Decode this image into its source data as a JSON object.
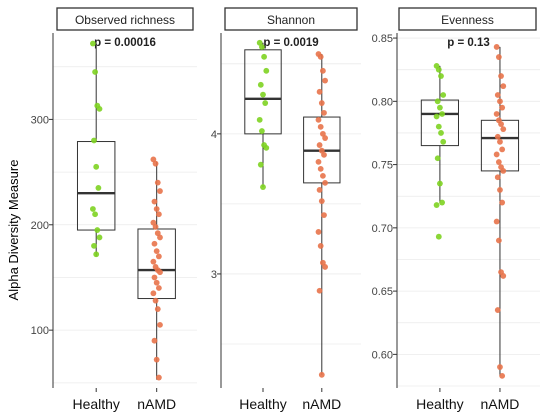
{
  "figure": {
    "ylabel": "Alpha Diversity Measure"
  },
  "colors": {
    "healthy": "#7ed321",
    "namd": "#e8734a",
    "box_stroke": "#333333",
    "grid": "#ebebeb"
  },
  "chart_data": [
    {
      "type": "box",
      "title": "Observed richness",
      "annotation": "p = 0.00016",
      "categories": [
        "Healthy",
        "nAMD"
      ],
      "ylim": [
        47,
        382
      ],
      "yticks": [
        100,
        200,
        300
      ],
      "ytick_labels": [
        "100",
        "200",
        "300"
      ],
      "grid": true,
      "boxes": [
        {
          "category": "Healthy",
          "q1": 195,
          "median": 230,
          "q3": 279,
          "whisker_low": 170,
          "whisker_high": 372
        },
        {
          "category": "nAMD",
          "q1": 130,
          "median": 157,
          "q3": 196,
          "whisker_low": 53,
          "whisker_high": 260
        }
      ],
      "points": [
        {
          "category": "Healthy",
          "values": [
            372,
            345,
            313,
            310,
            280,
            255,
            235,
            215,
            210,
            195,
            188,
            180,
            172
          ]
        },
        {
          "category": "nAMD",
          "values": [
            262,
            258,
            240,
            232,
            222,
            215,
            210,
            202,
            198,
            192,
            188,
            182,
            175,
            170,
            165,
            160,
            157,
            155,
            150,
            145,
            140,
            135,
            128,
            120,
            105,
            90,
            72,
            55
          ]
        }
      ]
    },
    {
      "type": "box",
      "title": "Shannon",
      "annotation": "p = 0.0019",
      "categories": [
        "Healthy",
        "nAMD"
      ],
      "ylim": [
        2.2,
        4.72
      ],
      "yticks": [
        3,
        4
      ],
      "ytick_labels": [
        "3",
        "4"
      ],
      "grid": true,
      "boxes": [
        {
          "category": "Healthy",
          "q1": 4.0,
          "median": 4.25,
          "q3": 4.6,
          "whisker_low": 3.62,
          "whisker_high": 4.65
        },
        {
          "category": "nAMD",
          "q1": 3.65,
          "median": 3.88,
          "q3": 4.12,
          "whisker_low": 2.28,
          "whisker_high": 4.57
        }
      ],
      "points": [
        {
          "category": "Healthy",
          "values": [
            4.65,
            4.62,
            4.55,
            4.45,
            4.35,
            4.28,
            4.22,
            4.1,
            4.02,
            3.92,
            3.9,
            3.78,
            3.62
          ]
        },
        {
          "category": "nAMD",
          "values": [
            4.57,
            4.55,
            4.45,
            4.38,
            4.3,
            4.22,
            4.15,
            4.1,
            4.05,
            4.0,
            3.97,
            3.92,
            3.88,
            3.85,
            3.8,
            3.75,
            3.7,
            3.65,
            3.6,
            3.52,
            3.42,
            3.3,
            3.2,
            3.08,
            3.05,
            2.88,
            2.28
          ]
        }
      ]
    },
    {
      "type": "box",
      "title": "Evenness",
      "annotation": "p = 0.13",
      "categories": [
        "Healthy",
        "nAMD"
      ],
      "ylim": [
        0.575,
        0.854
      ],
      "yticks": [
        0.6,
        0.65,
        0.7,
        0.75,
        0.8,
        0.85
      ],
      "ytick_labels": [
        "0.60",
        "0.65",
        "0.70",
        "0.75",
        "0.80",
        "0.85"
      ],
      "grid": true,
      "boxes": [
        {
          "category": "Healthy",
          "q1": 0.765,
          "median": 0.79,
          "q3": 0.801,
          "whisker_low": 0.72,
          "whisker_high": 0.828
        },
        {
          "category": "nAMD",
          "q1": 0.745,
          "median": 0.771,
          "q3": 0.785,
          "whisker_low": 0.583,
          "whisker_high": 0.843
        }
      ],
      "points": [
        {
          "category": "Healthy",
          "values": [
            0.828,
            0.825,
            0.82,
            0.805,
            0.8,
            0.795,
            0.79,
            0.788,
            0.78,
            0.775,
            0.768,
            0.755,
            0.735,
            0.72,
            0.718,
            0.693
          ]
        },
        {
          "category": "nAMD",
          "values": [
            0.843,
            0.835,
            0.82,
            0.812,
            0.805,
            0.8,
            0.795,
            0.79,
            0.785,
            0.782,
            0.778,
            0.772,
            0.768,
            0.762,
            0.758,
            0.752,
            0.748,
            0.745,
            0.74,
            0.73,
            0.72,
            0.705,
            0.69,
            0.665,
            0.662,
            0.635,
            0.59,
            0.583
          ]
        }
      ]
    }
  ]
}
